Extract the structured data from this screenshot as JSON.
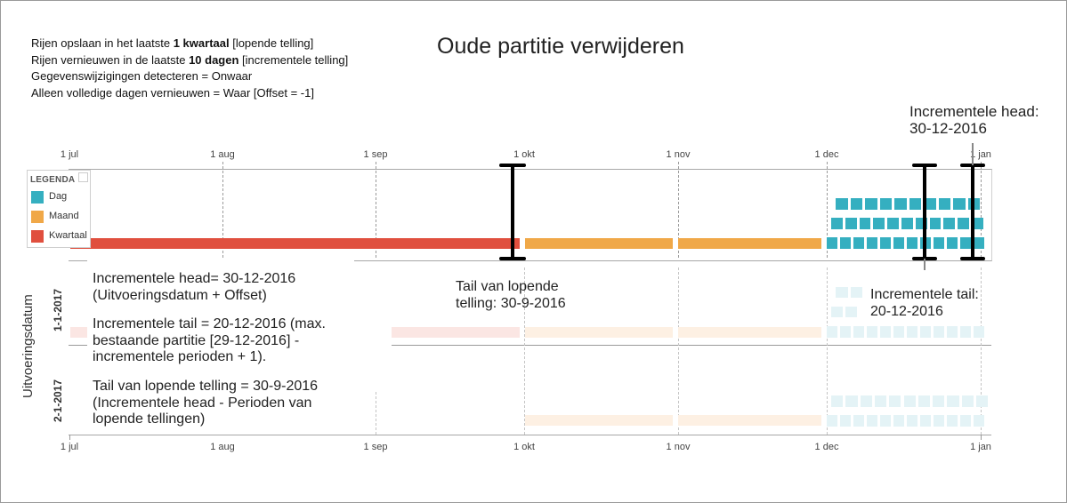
{
  "title": "Oude partitie verwijderen",
  "settings": {
    "line1_pre": "Rijen opslaan in het laatste ",
    "line1_bold": "1 kwartaal",
    "line1_post": " [lopende telling]",
    "line2_pre": "Rijen vernieuwen in de laatste ",
    "line2_bold": "10 dagen",
    "line2_post": " [incrementele telling]",
    "line3": "Gegevenswijzigingen detecteren = Onwaar",
    "line4": "Alleen volledige dagen vernieuwen = Waar [Offset = -1]"
  },
  "axis": {
    "months": [
      "1 jul",
      "1 aug",
      "1 sep",
      "1 okt",
      "1 nov",
      "1 dec",
      "1 jan"
    ],
    "y_title": "Uitvoeringsdatum",
    "rows": [
      "1-1-2017",
      "2-1-2017"
    ]
  },
  "legend": {
    "title": "LEGENDA",
    "items": [
      {
        "label": "Dag",
        "color": "#35afc0"
      },
      {
        "label": "Maand",
        "color": "#f0a848"
      },
      {
        "label": "Kwartaal",
        "color": "#e04f3e"
      }
    ]
  },
  "colors": {
    "day": "#35afc0",
    "month": "#f0a848",
    "quarter": "#e04f3e",
    "day_faded": "#e4f3f6",
    "month_faded": "#fdf0e3",
    "quarter_faded": "#fbe6e3"
  },
  "top_label": {
    "line1": "Incrementele head:",
    "line2": "30-12-2016"
  },
  "tail_label": {
    "line1": "Tail van lopende",
    "line2": "telling: 30-9-2016"
  },
  "incr_tail_label": {
    "line1": "Incrementele tail:",
    "line2": "20-12-2016"
  },
  "notes": {
    "head_1": "Incrementele head= 30-12-2016",
    "head_2": "(Uitvoeringsdatum + Offset)",
    "tail_1": "Incrementele tail = 20-12-2016 (max.",
    "tail_2": "bestaande partitie [29-12-2016] -",
    "tail_3": "incrementele  perioden + 1).",
    "rolling_1": "Tail van lopende telling = 30-9-2016",
    "rolling_2": "(Incrementele head - Perioden van",
    "rolling_3": "lopende tellingen)"
  }
}
